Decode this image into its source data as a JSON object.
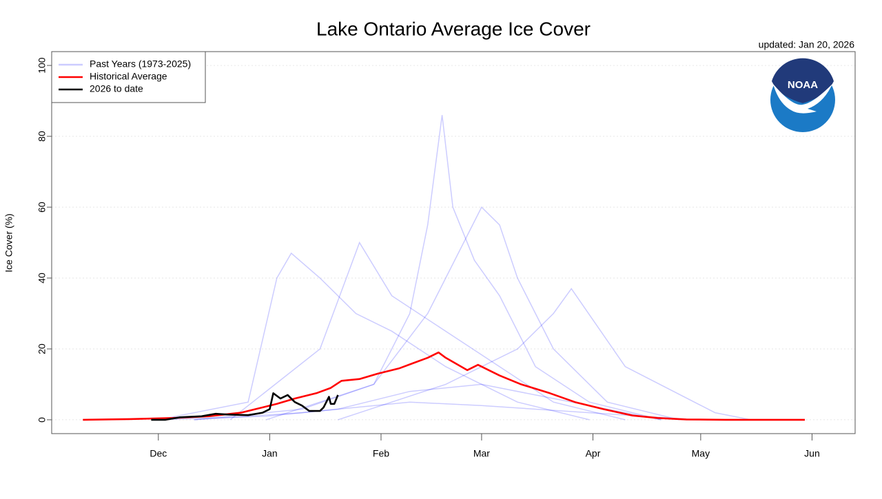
{
  "chart_data": {
    "type": "line",
    "title": "Lake Ontario Average Ice Cover",
    "subtitle": "updated: Jan 20, 2026",
    "y_label": "Ice Cover (%)",
    "logo_text": "NOAA",
    "xlim": [
      0.3,
      224
    ],
    "xticks": [
      {
        "value": 30,
        "label": "Dec"
      },
      {
        "value": 61,
        "label": "Jan"
      },
      {
        "value": 92,
        "label": "Feb"
      },
      {
        "value": 120,
        "label": "Mar"
      },
      {
        "value": 151,
        "label": "Apr"
      },
      {
        "value": 181,
        "label": "May"
      },
      {
        "value": 212,
        "label": "Jun"
      }
    ],
    "ylim": [
      -3.9,
      103.9
    ],
    "yticks": [
      0,
      20,
      40,
      60,
      80,
      100
    ],
    "grid": true,
    "legend": "top-left",
    "past_years": {
      "name": "Past Years (1973-2025)",
      "color": "#0000ff",
      "lines": [
        {
          "x": [
            40,
            70,
            90,
            100,
            105,
            109,
            112,
            118,
            125,
            135,
            150,
            170
          ],
          "values": [
            0,
            3,
            10,
            30,
            55,
            86,
            60,
            45,
            35,
            15,
            5,
            0
          ]
        },
        {
          "x": [
            30,
            55,
            63,
            67,
            75,
            85,
            95,
            110,
            130,
            150
          ],
          "values": [
            0,
            5,
            40,
            47,
            40,
            30,
            25,
            15,
            5,
            0
          ]
        },
        {
          "x": [
            60,
            90,
            105,
            115,
            120,
            125,
            130,
            140,
            155,
            175
          ],
          "values": [
            0,
            10,
            30,
            50,
            60,
            55,
            40,
            20,
            5,
            0
          ]
        },
        {
          "x": [
            50,
            75,
            86,
            95,
            110,
            125,
            140,
            160
          ],
          "values": [
            0,
            20,
            50,
            35,
            25,
            15,
            5,
            0
          ]
        },
        {
          "x": [
            40,
            70,
            100,
            120,
            150,
            180
          ],
          "values": [
            0,
            2,
            5,
            4,
            2,
            0
          ]
        },
        {
          "x": [
            80,
            110,
            130,
            140,
            145,
            160,
            185,
            195
          ],
          "values": [
            0,
            10,
            20,
            30,
            37,
            15,
            2,
            0
          ]
        },
        {
          "x": [
            30,
            60,
            80,
            100,
            120,
            140,
            170
          ],
          "values": [
            0,
            1,
            3,
            8,
            10,
            6,
            0
          ]
        }
      ]
    },
    "series": [
      {
        "name": "Historical Average",
        "color": "#ff0000",
        "x": [
          9,
          22,
          34,
          44,
          53,
          57,
          63,
          68,
          74,
          78,
          81,
          86,
          91,
          97,
          101,
          105,
          108,
          110,
          116,
          119,
          122,
          125,
          131,
          139,
          146,
          154,
          162,
          169,
          177,
          188,
          210
        ],
        "values": [
          0,
          0.2,
          0.5,
          1,
          2,
          3,
          4.5,
          6,
          7.5,
          9,
          11,
          11.5,
          13,
          14.5,
          16,
          17.5,
          19,
          17.5,
          14,
          15.5,
          14,
          12.5,
          10,
          7.5,
          5,
          3,
          1.2,
          0.5,
          0.1,
          0,
          0
        ]
      },
      {
        "name": "2026 to date",
        "color": "#000000",
        "x": [
          28,
          32,
          36,
          42,
          46,
          49,
          55,
          59,
          61,
          62,
          64,
          66,
          68,
          70,
          72,
          75,
          76,
          77.5,
          78,
          79,
          80
        ],
        "values": [
          0,
          0,
          0.7,
          1,
          1.7,
          1.5,
          1.3,
          2,
          3,
          7.5,
          6,
          7,
          5,
          4,
          2.5,
          2.5,
          3.5,
          6.5,
          4.5,
          4.5,
          7
        ]
      }
    ]
  }
}
